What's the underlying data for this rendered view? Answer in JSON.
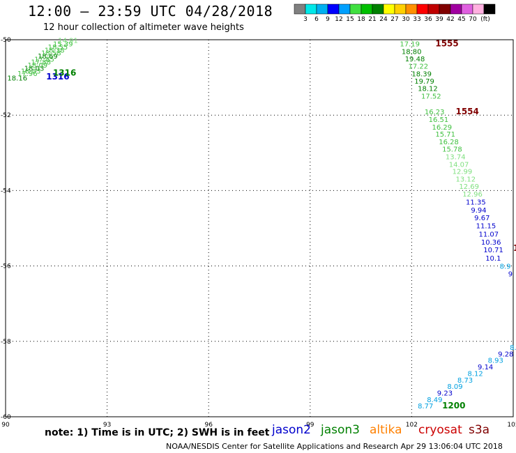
{
  "header": {
    "title": "12:00 – 23:59 UTC 04/28/2018",
    "subtitle": "12 hour collection of altimeter wave heights"
  },
  "colorbar": {
    "colors": [
      "#808080",
      "#00e8e8",
      "#00b0f0",
      "#0000ff",
      "#00a0ff",
      "#40e040",
      "#00c000",
      "#008000",
      "#ffff00",
      "#ffd000",
      "#ff9000",
      "#ff0000",
      "#c00000",
      "#800000",
      "#a000a0",
      "#e060e0",
      "#ffb0e0",
      "#000000"
    ],
    "labels": [
      "3",
      "6",
      "9",
      "12",
      "15",
      "18",
      "21",
      "24",
      "27",
      "30",
      "33",
      "36",
      "39",
      "42",
      "45",
      "70"
    ],
    "unit": "(ft)"
  },
  "footer": {
    "note": "note: 1) Time is in UTC; 2) SWH is in feet",
    "credit": "NOAA/NESDIS Center for Satellite Applications and Research   Apr 29 13:06:04 UTC 2018"
  },
  "satellites": [
    {
      "name": "jason2",
      "color": "#0000cc"
    },
    {
      "name": "jason3",
      "color": "#008000"
    },
    {
      "name": "altika",
      "color": "#ff8000"
    },
    {
      "name": "cryosat",
      "color": "#cc0000"
    },
    {
      "name": "s3a",
      "color": "#800000"
    }
  ],
  "chart_data": {
    "type": "scatter",
    "xlim": [
      90,
      105
    ],
    "ylim": [
      -60,
      -50
    ],
    "x_ticks": [
      "90",
      "93",
      "96",
      "99",
      "102",
      "105"
    ],
    "y_ticks": [
      "-50",
      "-52",
      "-54",
      "-56",
      "-58",
      "-60"
    ],
    "grid": true,
    "time_labels": [
      {
        "text": "1316",
        "x": 91.2,
        "y": -51.05,
        "color": "#0000cc"
      },
      {
        "text": "1316",
        "x": 91.4,
        "y": -50.95,
        "color": "#008000"
      },
      {
        "text": "1555",
        "x": 102.7,
        "y": -50.18,
        "color": "#800000"
      },
      {
        "text": "1554",
        "x": 103.3,
        "y": -51.98,
        "color": "#800000"
      },
      {
        "text": "1200",
        "x": 102.9,
        "y": -59.78,
        "color": "#008000"
      },
      {
        "text": "1",
        "x": 105.0,
        "y": -55.6,
        "color": "#800000"
      }
    ],
    "points": [
      {
        "v": "18.16",
        "x": 90.05,
        "y": -51.08,
        "c": "#008000"
      },
      {
        "v": "17.96",
        "x": 90.35,
        "y": -50.96,
        "c": "#40c040"
      },
      {
        "v": "18.03",
        "x": 90.45,
        "y": -50.9,
        "c": "#40c040"
      },
      {
        "v": "18.03",
        "x": 90.55,
        "y": -50.82,
        "c": "#008000"
      },
      {
        "v": "18.09",
        "x": 90.65,
        "y": -50.74,
        "c": "#40c040"
      },
      {
        "v": "17.88",
        "x": 90.75,
        "y": -50.66,
        "c": "#40c040"
      },
      {
        "v": "17.85",
        "x": 90.85,
        "y": -50.58,
        "c": "#40c040"
      },
      {
        "v": "18.69",
        "x": 90.95,
        "y": -50.5,
        "c": "#008000"
      },
      {
        "v": "18.58",
        "x": 91.05,
        "y": -50.42,
        "c": "#40c040"
      },
      {
        "v": "18.38",
        "x": 91.15,
        "y": -50.34,
        "c": "#40c040"
      },
      {
        "v": "18.55",
        "x": 91.25,
        "y": -50.26,
        "c": "#40c040"
      },
      {
        "v": "15.39",
        "x": 91.4,
        "y": -50.18,
        "c": "#40c040"
      },
      {
        "v": "14.91",
        "x": 91.55,
        "y": -50.08,
        "c": "#80e080"
      },
      {
        "v": "17.19",
        "x": 101.65,
        "y": -50.18,
        "c": "#40c040"
      },
      {
        "v": "18.80",
        "x": 101.7,
        "y": -50.38,
        "c": "#008000"
      },
      {
        "v": "19.48",
        "x": 101.8,
        "y": -50.57,
        "c": "#008000"
      },
      {
        "v": "17.22",
        "x": 101.9,
        "y": -50.77,
        "c": "#40c040"
      },
      {
        "v": "18.39",
        "x": 102.0,
        "y": -50.97,
        "c": "#008000"
      },
      {
        "v": "19.79",
        "x": 102.08,
        "y": -51.16,
        "c": "#008000"
      },
      {
        "v": "18.12",
        "x": 102.18,
        "y": -51.36,
        "c": "#008000"
      },
      {
        "v": "17.52",
        "x": 102.28,
        "y": -51.56,
        "c": "#40c040"
      },
      {
        "v": "16.23",
        "x": 102.38,
        "y": -51.98,
        "c": "#40c040"
      },
      {
        "v": "16.51",
        "x": 102.5,
        "y": -52.18,
        "c": "#40c040"
      },
      {
        "v": "16.29",
        "x": 102.6,
        "y": -52.38,
        "c": "#40c040"
      },
      {
        "v": "15.71",
        "x": 102.7,
        "y": -52.57,
        "c": "#40c040"
      },
      {
        "v": "16.28",
        "x": 102.8,
        "y": -52.77,
        "c": "#40c040"
      },
      {
        "v": "15.78",
        "x": 102.9,
        "y": -52.97,
        "c": "#40c040"
      },
      {
        "v": "13.74",
        "x": 103.0,
        "y": -53.17,
        "c": "#80e080"
      },
      {
        "v": "14.07",
        "x": 103.1,
        "y": -53.37,
        "c": "#80e080"
      },
      {
        "v": "12.99",
        "x": 103.2,
        "y": -53.56,
        "c": "#80e080"
      },
      {
        "v": "13.12",
        "x": 103.3,
        "y": -53.76,
        "c": "#80e080"
      },
      {
        "v": "12.69",
        "x": 103.4,
        "y": -53.96,
        "c": "#80e080"
      },
      {
        "v": "12.96",
        "x": 103.5,
        "y": -54.16,
        "c": "#80e080"
      },
      {
        "v": "11.35",
        "x": 103.6,
        "y": -54.37,
        "c": "#0000cc"
      },
      {
        "v": "9.94",
        "x": 103.75,
        "y": -54.58,
        "c": "#0000cc"
      },
      {
        "v": "9.67",
        "x": 103.85,
        "y": -54.79,
        "c": "#0000cc"
      },
      {
        "v": "11.15",
        "x": 103.9,
        "y": -55.0,
        "c": "#0000cc"
      },
      {
        "v": "11.07",
        "x": 103.98,
        "y": -55.22,
        "c": "#0000cc"
      },
      {
        "v": "10.36",
        "x": 104.05,
        "y": -55.43,
        "c": "#0000cc"
      },
      {
        "v": "10.71",
        "x": 104.12,
        "y": -55.64,
        "c": "#0000cc"
      },
      {
        "v": "10.1",
        "x": 104.18,
        "y": -55.86,
        "c": "#0000cc"
      },
      {
        "v": "8.9",
        "x": 104.6,
        "y": -56.07,
        "c": "#00a0e0"
      },
      {
        "v": "9",
        "x": 104.85,
        "y": -56.28,
        "c": "#0000cc"
      },
      {
        "v": "8.77",
        "x": 102.18,
        "y": -59.78,
        "c": "#00a0e0"
      },
      {
        "v": "8.49",
        "x": 102.45,
        "y": -59.61,
        "c": "#00a0e0"
      },
      {
        "v": "9.23",
        "x": 102.75,
        "y": -59.44,
        "c": "#0000cc"
      },
      {
        "v": "8.09",
        "x": 103.05,
        "y": -59.26,
        "c": "#00a0e0"
      },
      {
        "v": "8.73",
        "x": 103.35,
        "y": -59.09,
        "c": "#00a0e0"
      },
      {
        "v": "8.12",
        "x": 103.65,
        "y": -58.92,
        "c": "#00a0e0"
      },
      {
        "v": "9.14",
        "x": 103.95,
        "y": -58.74,
        "c": "#0000cc"
      },
      {
        "v": "8.93",
        "x": 104.25,
        "y": -58.57,
        "c": "#00a0e0"
      },
      {
        "v": "9.28",
        "x": 104.55,
        "y": -58.4,
        "c": "#0000cc"
      },
      {
        "v": "8.",
        "x": 104.9,
        "y": -58.23,
        "c": "#00a0e0"
      }
    ]
  }
}
